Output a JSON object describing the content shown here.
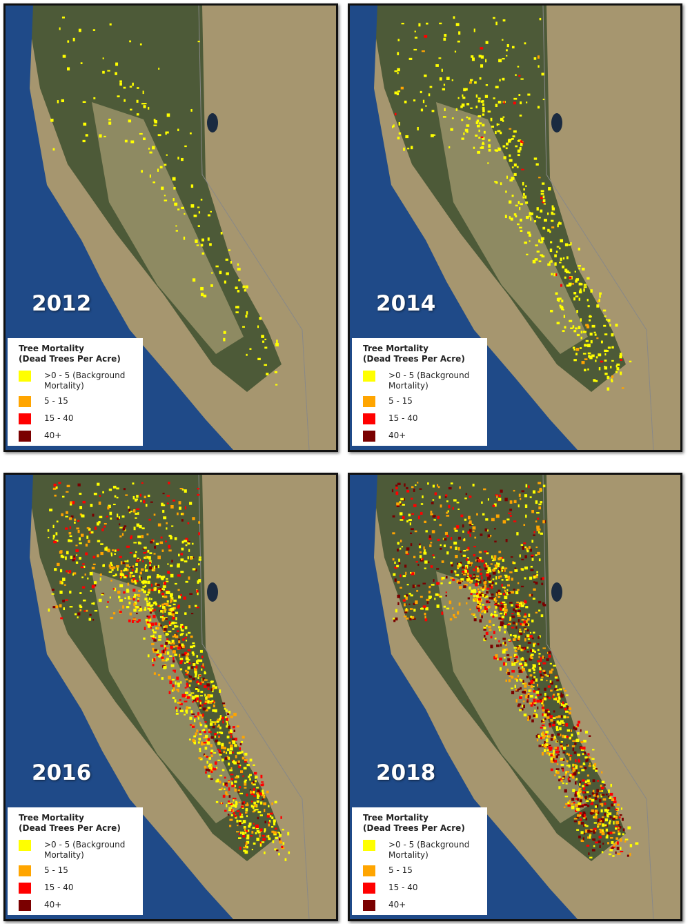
{
  "panels": [
    {
      "year": "2012",
      "legend": {
        "title": "Tree Mortality",
        "subtitle": "(Dead Trees Per Acre)",
        "items": [
          {
            "label": ">0 - 5 (Background Mortality)",
            "color": "#ffff00"
          },
          {
            "label": "5 - 15",
            "color": "#ffa500"
          },
          {
            "label": "15 - 40",
            "color": "#ff0000"
          },
          {
            "label": "40+",
            "color": "#7a0000"
          }
        ]
      }
    },
    {
      "year": "2014",
      "legend": {
        "title": "Tree Mortality",
        "subtitle": "(Dead Trees Per Acre)",
        "items": [
          {
            "label": ">0 - 5 (Background Mortality)",
            "color": "#ffff00"
          },
          {
            "label": "5 - 15",
            "color": "#ffa500"
          },
          {
            "label": "15 - 40",
            "color": "#ff0000"
          },
          {
            "label": "40+",
            "color": "#7a0000"
          }
        ]
      }
    },
    {
      "year": "2016",
      "legend": {
        "title": "Tree Mortality",
        "subtitle": "(Dead Trees Per Acre)",
        "items": [
          {
            "label": ">0 - 5 (Background Mortality)",
            "color": "#ffff00"
          },
          {
            "label": "5 - 15",
            "color": "#ffa500"
          },
          {
            "label": "15 - 40",
            "color": "#ff0000"
          },
          {
            "label": "40+",
            "color": "#7a0000"
          }
        ]
      }
    },
    {
      "year": "2018",
      "legend": {
        "title": "Tree Mortality",
        "subtitle": "(Dead Trees Per Acre)",
        "items": [
          {
            "label": ">0 - 5 (Background Mortality)",
            "color": "#ffff00"
          },
          {
            "label": "5 - 15",
            "color": "#ffa500"
          },
          {
            "label": "15 - 40",
            "color": "#ff0000"
          },
          {
            "label": "40+",
            "color": "#7a0000"
          }
        ]
      }
    }
  ]
}
